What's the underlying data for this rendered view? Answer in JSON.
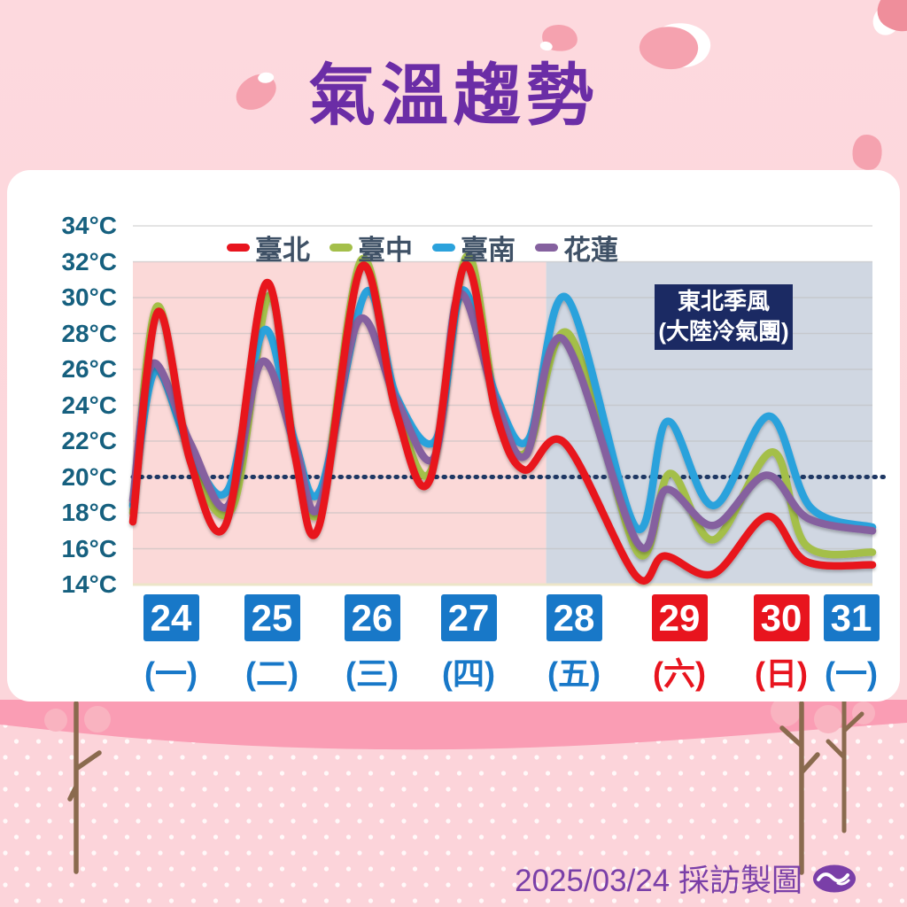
{
  "title": "氣溫趨勢",
  "footer": {
    "credit": "2025/03/24 採訪製圖",
    "logo": "cwa-swirl-logo"
  },
  "chart_data": {
    "type": "line",
    "title": "氣溫趨勢",
    "y_axis": {
      "unit": "°C",
      "ticks": [
        34,
        32,
        30,
        28,
        26,
        24,
        22,
        20,
        18,
        16,
        14
      ],
      "lim": [
        14,
        34
      ]
    },
    "x_axis": {
      "days": [
        {
          "date": "24",
          "weekday": "(一)",
          "color": "#1878c8"
        },
        {
          "date": "25",
          "weekday": "(二)",
          "color": "#1878c8"
        },
        {
          "date": "26",
          "weekday": "(三)",
          "color": "#1878c8"
        },
        {
          "date": "27",
          "weekday": "(四)",
          "color": "#1878c8"
        },
        {
          "date": "28",
          "weekday": "(五)",
          "color": "#1878c8"
        },
        {
          "date": "29",
          "weekday": "(六)",
          "color": "#e8141e"
        },
        {
          "date": "30",
          "weekday": "(日)",
          "color": "#e8141e"
        },
        {
          "date": "31",
          "weekday": "(一)",
          "color": "#1878c8"
        }
      ]
    },
    "reference_line": {
      "value": 20,
      "style": "dotted",
      "color": "#1f3864"
    },
    "regions": [
      {
        "name": "warm-period",
        "from_day": 0,
        "to_day": 4.47,
        "color": "#fbd9d8",
        "top_value": 32,
        "bottom_value": 14
      },
      {
        "name": "cold-period",
        "from_day": 4.47,
        "to_day": 8,
        "color": "#d0d7e2",
        "top_value": 32,
        "bottom_value": 14
      }
    ],
    "annotation": {
      "line1": "東北季風",
      "line2": "(大陸冷氣團)",
      "bg": "#1b2a63",
      "fg": "#ffffff"
    },
    "legend_position": "top",
    "grid": true,
    "series": [
      {
        "name": "臺北",
        "color": "#e8141e",
        "points": [
          [
            0,
            17.5
          ],
          [
            0.27,
            29.2
          ],
          [
            0.62,
            20.9
          ],
          [
            1.01,
            17.4
          ],
          [
            1.44,
            30.8
          ],
          [
            1.75,
            21.3
          ],
          [
            2.01,
            17.2
          ],
          [
            2.47,
            31.7
          ],
          [
            2.85,
            23.6
          ],
          [
            3.21,
            19.8
          ],
          [
            3.59,
            31.8
          ],
          [
            3.93,
            23.5
          ],
          [
            4.23,
            20.4
          ],
          [
            4.67,
            21.9
          ],
          [
            5.44,
            14.5
          ],
          [
            5.75,
            15.6
          ],
          [
            6.28,
            14.6
          ],
          [
            6.86,
            17.8
          ],
          [
            7.28,
            15.3
          ],
          [
            8,
            15.1
          ]
        ]
      },
      {
        "name": "臺中",
        "color": "#a4bf4a",
        "points": [
          [
            0,
            18.0
          ],
          [
            0.26,
            29.5
          ],
          [
            0.62,
            21.2
          ],
          [
            1.08,
            18.3
          ],
          [
            1.47,
            30.1
          ],
          [
            1.75,
            21.6
          ],
          [
            2.03,
            18.3
          ],
          [
            2.47,
            32.1
          ],
          [
            2.85,
            24.0
          ],
          [
            3.23,
            20.4
          ],
          [
            3.61,
            32.3
          ],
          [
            3.93,
            24.0
          ],
          [
            4.26,
            21.4
          ],
          [
            4.71,
            28.0
          ],
          [
            5.46,
            15.8
          ],
          [
            5.81,
            20.2
          ],
          [
            6.28,
            16.5
          ],
          [
            6.92,
            21.4
          ],
          [
            7.28,
            16.2
          ],
          [
            8,
            15.8
          ]
        ]
      },
      {
        "name": "臺南",
        "color": "#2ba2dc",
        "points": [
          [
            0,
            18.4
          ],
          [
            0.24,
            25.9
          ],
          [
            0.62,
            21.5
          ],
          [
            1.03,
            19.3
          ],
          [
            1.42,
            28.2
          ],
          [
            1.75,
            22.0
          ],
          [
            2.03,
            19.3
          ],
          [
            2.52,
            30.3
          ],
          [
            2.85,
            24.5
          ],
          [
            3.28,
            22.1
          ],
          [
            3.56,
            30.4
          ],
          [
            3.93,
            24.5
          ],
          [
            4.28,
            22.1
          ],
          [
            4.69,
            30.0
          ],
          [
            5.44,
            17.2
          ],
          [
            5.78,
            23.1
          ],
          [
            6.28,
            18.4
          ],
          [
            6.88,
            23.4
          ],
          [
            7.33,
            18.3
          ],
          [
            8,
            17.2
          ]
        ]
      },
      {
        "name": "花蓮",
        "color": "#85619f",
        "points": [
          [
            0,
            18.7
          ],
          [
            0.21,
            26.3
          ],
          [
            0.62,
            21.9
          ],
          [
            1.03,
            18.4
          ],
          [
            1.39,
            26.4
          ],
          [
            1.75,
            21.8
          ],
          [
            2.01,
            18.3
          ],
          [
            2.44,
            28.7
          ],
          [
            2.85,
            24.3
          ],
          [
            3.26,
            21.1
          ],
          [
            3.53,
            30.2
          ],
          [
            3.93,
            24.2
          ],
          [
            4.25,
            21.2
          ],
          [
            4.65,
            27.7
          ],
          [
            5.46,
            16.3
          ],
          [
            5.77,
            19.3
          ],
          [
            6.28,
            17.3
          ],
          [
            6.85,
            20.1
          ],
          [
            7.3,
            17.7
          ],
          [
            8,
            17.0
          ]
        ]
      }
    ]
  }
}
